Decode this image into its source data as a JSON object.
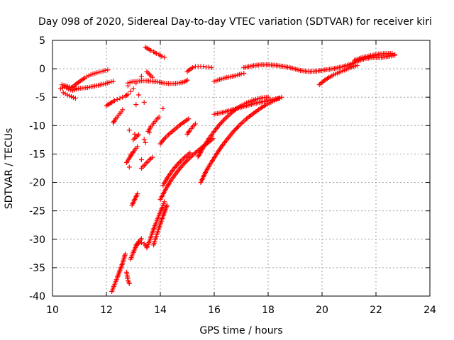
{
  "chart_data": {
    "type": "scatter",
    "title": "Day 098 of 2020, Sidereal Day-to-day VTEC variation (SDTVAR) for receiver kiri",
    "xlabel": "GPS time / hours",
    "ylabel": "SDTVAR / TECUs",
    "xlim": [
      10,
      24
    ],
    "ylim": [
      -40,
      5
    ],
    "xticks": [
      10,
      12,
      14,
      16,
      18,
      20,
      22,
      24
    ],
    "yticks": [
      5,
      0,
      -5,
      -10,
      -15,
      -20,
      -25,
      -30,
      -35,
      -40
    ],
    "xtick_labels": [
      "10",
      "12",
      "14",
      "16",
      "18",
      "20",
      "22",
      "24"
    ],
    "ytick_labels": [
      "5",
      "0",
      "-5",
      "-10",
      "-15",
      "-20",
      "-25",
      "-30",
      "-35",
      "-40"
    ],
    "grid": true,
    "marker": "+",
    "color": "#ff0000",
    "series": [
      {
        "name": "track-1",
        "x": [
          10.35,
          10.5,
          10.7,
          10.9,
          11.1,
          11.3,
          11.5,
          11.7,
          11.9,
          12.1,
          12.25
        ],
        "y": [
          -2.8,
          -3.0,
          -3.3,
          -3.5,
          -3.4,
          -3.3,
          -3.1,
          -2.9,
          -2.7,
          -2.4,
          -2.2
        ]
      },
      {
        "name": "track-2",
        "x": [
          10.4,
          10.55,
          10.7,
          10.85
        ],
        "y": [
          -4.2,
          -4.6,
          -4.9,
          -5.2
        ]
      },
      {
        "name": "track-3",
        "x": [
          10.75,
          10.9,
          11.05,
          11.2,
          11.35,
          11.5,
          11.65,
          11.8,
          11.95,
          12.05
        ],
        "y": [
          -3.2,
          -2.6,
          -2.1,
          -1.6,
          -1.2,
          -0.9,
          -0.7,
          -0.5,
          -0.3,
          -0.2
        ]
      },
      {
        "name": "track-4",
        "x": [
          10.3,
          10.45,
          10.6,
          10.75,
          10.9
        ],
        "y": [
          -3.5,
          -3.2,
          -3.6,
          -3.8,
          -3.6
        ]
      },
      {
        "name": "track-5",
        "x": [
          12.0,
          12.1,
          12.2,
          12.3,
          12.4,
          12.5,
          12.6,
          12.7,
          12.8
        ],
        "y": [
          -6.5,
          -6.2,
          -5.9,
          -5.6,
          -5.4,
          -5.2,
          -5.0,
          -4.8,
          -4.5
        ]
      },
      {
        "name": "track-6",
        "x": [
          12.25,
          12.35,
          12.45,
          12.55,
          12.6
        ],
        "y": [
          -9.5,
          -8.8,
          -8.2,
          -7.6,
          -7.2
        ]
      },
      {
        "name": "track-7",
        "x": [
          12.8,
          12.95,
          13.1,
          13.3,
          13.5,
          13.7,
          13.9,
          14.1,
          14.3,
          14.5,
          14.7,
          14.9,
          15.0
        ],
        "y": [
          -2.5,
          -2.3,
          -2.2,
          -2.1,
          -2.1,
          -2.2,
          -2.3,
          -2.5,
          -2.6,
          -2.6,
          -2.5,
          -2.3,
          -2.0
        ]
      },
      {
        "name": "track-8",
        "x": [
          15.0,
          15.1,
          15.2,
          15.3,
          15.4,
          15.5,
          15.6,
          15.7,
          15.8,
          15.9
        ],
        "y": [
          -0.5,
          -0.1,
          0.2,
          0.4,
          0.4,
          0.4,
          0.4,
          0.3,
          0.3,
          0.2
        ]
      },
      {
        "name": "track-9",
        "x": [
          16.0,
          16.2,
          16.4,
          16.6,
          16.8,
          17.0,
          17.1
        ],
        "y": [
          -2.2,
          -1.9,
          -1.6,
          -1.4,
          -1.2,
          -0.9,
          -0.8
        ]
      },
      {
        "name": "track-10",
        "x": [
          17.1,
          17.4,
          17.7,
          18.0,
          18.3,
          18.6,
          18.9,
          19.2,
          19.5,
          19.8,
          20.1,
          20.4,
          20.7,
          21.0,
          21.3,
          21.6,
          21.9,
          22.2,
          22.5,
          22.7
        ],
        "y": [
          0.2,
          0.5,
          0.7,
          0.7,
          0.6,
          0.4,
          0.1,
          -0.3,
          -0.5,
          -0.4,
          -0.2,
          0.0,
          0.3,
          0.7,
          1.3,
          1.8,
          2.0,
          2.0,
          2.2,
          2.4
        ]
      },
      {
        "name": "track-11",
        "x": [
          19.9,
          20.1,
          20.3,
          20.5,
          20.7,
          20.9,
          21.1,
          21.3
        ],
        "y": [
          -2.8,
          -2.0,
          -1.4,
          -0.9,
          -0.5,
          -0.1,
          0.3,
          0.6
        ]
      },
      {
        "name": "track-12",
        "x": [
          21.2,
          21.5,
          21.8,
          22.1,
          22.4,
          22.6,
          22.7
        ],
        "y": [
          1.5,
          2.0,
          2.3,
          2.6,
          2.7,
          2.7,
          2.5
        ]
      },
      {
        "name": "track-13",
        "x": [
          13.45,
          13.55,
          13.65,
          13.75,
          13.85,
          13.95,
          14.05,
          14.15
        ],
        "y": [
          3.8,
          3.5,
          3.2,
          3.0,
          2.7,
          2.5,
          2.2,
          2.0
        ]
      },
      {
        "name": "track-14",
        "x": [
          13.5,
          13.6,
          13.7
        ],
        "y": [
          -0.5,
          -1.0,
          -1.5
        ]
      },
      {
        "name": "track-15",
        "x": [
          13.55,
          13.65,
          13.75,
          13.85,
          13.95
        ],
        "y": [
          -11.0,
          -10.2,
          -9.6,
          -9.0,
          -8.5
        ]
      },
      {
        "name": "track-16",
        "x": [
          12.75,
          12.85,
          12.95,
          13.05,
          13.15
        ],
        "y": [
          -16.5,
          -15.7,
          -15.0,
          -14.3,
          -13.7
        ]
      },
      {
        "name": "track-17",
        "x": [
          13.0,
          13.1,
          13.2
        ],
        "y": [
          -12.5,
          -12.0,
          -11.6
        ]
      },
      {
        "name": "track-18",
        "x": [
          13.3,
          13.4,
          13.5,
          13.6,
          13.7
        ],
        "y": [
          -17.5,
          -17.0,
          -16.5,
          -16.0,
          -15.6
        ]
      },
      {
        "name": "track-19",
        "x": [
          14.0,
          14.15,
          14.3,
          14.45,
          14.6,
          14.75,
          14.9,
          15.05
        ],
        "y": [
          -13.2,
          -12.3,
          -11.6,
          -11.0,
          -10.4,
          -9.8,
          -9.3,
          -8.8
        ]
      },
      {
        "name": "track-20",
        "x": [
          15.0,
          15.1,
          15.2,
          15.3
        ],
        "y": [
          -11.5,
          -10.8,
          -10.2,
          -9.7
        ]
      },
      {
        "name": "track-21",
        "x": [
          14.1,
          14.3,
          14.5,
          14.7,
          14.9,
          15.1
        ],
        "y": [
          -20.5,
          -18.9,
          -17.6,
          -16.5,
          -15.6,
          -14.8
        ]
      },
      {
        "name": "track-22",
        "x": [
          14.0,
          14.2,
          14.4,
          14.6,
          14.8,
          15.0,
          15.2,
          15.4,
          15.6,
          15.8,
          15.95
        ],
        "y": [
          -23.0,
          -21.2,
          -19.6,
          -18.3,
          -17.1,
          -16.1,
          -15.2,
          -14.4,
          -13.6,
          -12.9,
          -12.3
        ]
      },
      {
        "name": "track-23",
        "x": [
          13.5,
          13.6,
          13.7,
          13.8,
          13.9,
          14.0,
          14.1,
          14.15
        ],
        "y": [
          -31.5,
          -30.3,
          -28.9,
          -27.6,
          -26.4,
          -25.2,
          -24.1,
          -23.4
        ]
      },
      {
        "name": "track-24",
        "x": [
          13.75,
          13.85,
          13.95,
          14.05,
          14.15,
          14.25
        ],
        "y": [
          -31.0,
          -29.5,
          -28.0,
          -26.6,
          -25.3,
          -24.0
        ]
      },
      {
        "name": "track-25",
        "x": [
          13.1,
          13.2,
          13.3,
          13.4,
          13.5
        ],
        "y": [
          -31.0,
          -30.7,
          -30.6,
          -30.8,
          -31.3
        ]
      },
      {
        "name": "track-26",
        "x": [
          12.2,
          12.3,
          12.4,
          12.5,
          12.6,
          12.7
        ],
        "y": [
          -39.2,
          -38.0,
          -36.8,
          -35.5,
          -34.2,
          -32.6
        ]
      },
      {
        "name": "track-27",
        "x": [
          12.9,
          13.0,
          13.1,
          13.2,
          13.3
        ],
        "y": [
          -33.5,
          -32.3,
          -31.2,
          -30.4,
          -29.9
        ]
      },
      {
        "name": "track-28",
        "x": [
          12.95,
          13.05,
          13.15
        ],
        "y": [
          -24.0,
          -23.0,
          -22.0
        ]
      },
      {
        "name": "track-29",
        "x": [
          12.75,
          12.8,
          12.85
        ],
        "y": [
          -35.8,
          -37.2,
          -37.8
        ]
      },
      {
        "name": "track-30",
        "x": [
          15.5,
          15.7,
          15.9,
          16.1,
          16.3,
          16.5,
          16.7,
          16.9,
          17.1,
          17.3,
          17.5,
          17.7,
          17.9,
          18.1,
          18.3,
          18.5
        ],
        "y": [
          -20.0,
          -18.0,
          -16.4,
          -14.9,
          -13.5,
          -12.3,
          -11.1,
          -10.1,
          -9.2,
          -8.4,
          -7.7,
          -7.0,
          -6.4,
          -5.9,
          -5.4,
          -5.0
        ]
      },
      {
        "name": "track-31",
        "x": [
          15.4,
          15.6,
          15.8,
          16.0,
          16.2,
          16.4,
          16.6,
          16.8,
          17.0,
          17.2,
          17.4,
          17.6,
          17.8,
          18.0
        ],
        "y": [
          -15.5,
          -13.8,
          -12.3,
          -11.0,
          -9.8,
          -8.8,
          -7.9,
          -7.1,
          -6.5,
          -6.0,
          -5.6,
          -5.3,
          -5.1,
          -5.0
        ]
      },
      {
        "name": "track-32",
        "x": [
          16.0,
          16.3,
          16.6,
          16.9,
          17.2,
          17.5,
          17.8,
          18.1,
          18.4
        ],
        "y": [
          -8.0,
          -7.7,
          -7.3,
          -6.9,
          -6.5,
          -6.1,
          -5.8,
          -5.5,
          -5.2
        ]
      },
      {
        "name": "scatter-pts",
        "x": [
          12.8,
          12.9,
          13.0,
          13.1,
          13.3,
          13.2,
          13.4,
          13.1,
          12.85,
          13.05,
          13.6,
          14.1,
          13.4,
          13.45,
          12.9,
          13.3,
          12.85
        ],
        "y": [
          -3.0,
          -4.0,
          -3.5,
          -2.5,
          -1.3,
          -4.6,
          -5.9,
          -6.3,
          -10.8,
          -11.5,
          -11.2,
          -7.0,
          -12.4,
          -13.0,
          -15.0,
          -16.0,
          -17.3
        ]
      }
    ]
  }
}
